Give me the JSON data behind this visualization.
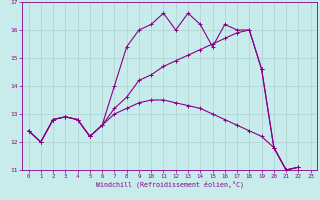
{
  "xlabel": "Windchill (Refroidissement éolien,°C)",
  "xlim": [
    -0.5,
    23.5
  ],
  "ylim": [
    11,
    17
  ],
  "yticks": [
    11,
    12,
    13,
    14,
    15,
    16,
    17
  ],
  "xticks": [
    0,
    1,
    2,
    3,
    4,
    5,
    6,
    7,
    8,
    9,
    10,
    11,
    12,
    13,
    14,
    15,
    16,
    17,
    18,
    19,
    20,
    21,
    22,
    23
  ],
  "background_color": "#c8ecec",
  "grid_color": "#b0d0d0",
  "line_color": "#880088",
  "spine_color": "#880088",
  "tick_color": "#880088",
  "series": [
    [
      12.4,
      12.0,
      12.8,
      12.9,
      12.8,
      12.2,
      12.6,
      14.0,
      15.4,
      16.0,
      16.2,
      16.6,
      16.0,
      16.6,
      16.2,
      15.4,
      16.2,
      16.0,
      16.0,
      14.6,
      11.8,
      11.0,
      11.1
    ],
    [
      12.4,
      12.0,
      12.8,
      12.9,
      12.8,
      12.2,
      12.6,
      13.2,
      13.6,
      14.2,
      14.4,
      14.7,
      14.9,
      15.1,
      15.3,
      15.5,
      15.7,
      15.9,
      16.0,
      14.6,
      11.8,
      11.0,
      11.1
    ],
    [
      12.4,
      12.0,
      12.8,
      12.9,
      12.8,
      12.2,
      12.6,
      13.0,
      13.2,
      13.4,
      13.5,
      13.5,
      13.4,
      13.3,
      13.2,
      13.0,
      12.8,
      12.6,
      12.4,
      12.2,
      11.8,
      11.0,
      11.1
    ]
  ]
}
